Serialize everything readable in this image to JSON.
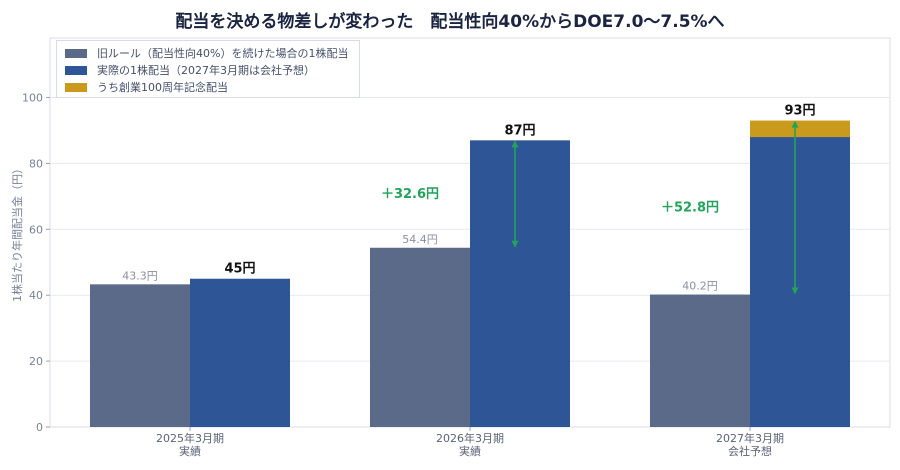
{
  "chart_data": {
    "type": "bar",
    "title": "配当を決める物差しが変わった　配当性向40%からDOE7.0〜7.5%へ",
    "ylabel": "1株当たり年間配当金（円）",
    "xlabel": "",
    "ylim": [
      0,
      100
    ],
    "yticks": [
      0,
      20,
      40,
      60,
      80,
      100
    ],
    "grid": true,
    "legend_position": "top-left",
    "categories": [
      {
        "line1": "2025年3月期",
        "line2": "実績"
      },
      {
        "line1": "2026年3月期",
        "line2": "実績"
      },
      {
        "line1": "2027年3月期",
        "line2": "会社予想"
      }
    ],
    "series": [
      {
        "name": "旧ルール（配当性向40%）を続けた場合の1株配当",
        "color": "#5b6a89",
        "values": [
          43.3,
          54.4,
          40.2
        ],
        "labels": [
          "43.3円",
          "54.4円",
          "40.2円"
        ]
      },
      {
        "name": "実際の1株配当（2027年3月期は会社予想）",
        "color": "#2e5596",
        "values": [
          45,
          87,
          88
        ]
      },
      {
        "name": "うち創業100周年記念配当",
        "color": "#c99a1c",
        "values": [
          0,
          0,
          5
        ]
      }
    ],
    "totals": [
      {
        "value": 45,
        "label": "45円"
      },
      {
        "value": 87,
        "label": "87円"
      },
      {
        "value": 93,
        "label": "93円"
      }
    ],
    "differences": [
      {
        "category": 1,
        "from": 54.4,
        "to": 87,
        "label": "＋32.6円"
      },
      {
        "category": 2,
        "from": 40.2,
        "to": 93,
        "label": "＋52.8円"
      }
    ],
    "colors": {
      "difference": "#23a35a",
      "axis_text": "#7a8297",
      "title": "#1b2440"
    }
  }
}
